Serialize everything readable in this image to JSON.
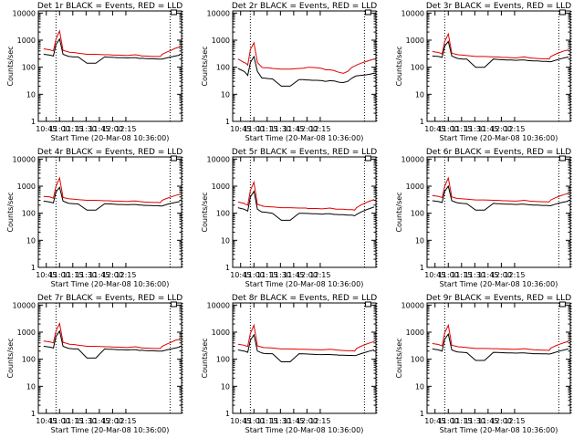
{
  "ylabel": "Counts/sec",
  "xlabel": "Start Time (20-Mar-08 10:36:00)",
  "xticks": [
    "10:45",
    "11:00",
    "11:15",
    "11:30",
    "11:45",
    "12:00",
    "12:15"
  ],
  "yticks": [
    "1",
    "10",
    "100",
    "1000",
    "10000"
  ],
  "series_names": [
    "Events",
    "LLD"
  ],
  "colors": {
    "events": "#000000",
    "lld": "#e00000",
    "axis": "#000000"
  },
  "chart_data": [
    {
      "type": "line",
      "title": "Det 1r BLACK = Events, RED = LLD",
      "x_minutes": [
        6,
        13,
        15,
        17,
        20,
        24,
        28,
        33,
        35,
        40,
        45,
        55,
        65,
        75,
        80,
        83,
        85,
        90,
        95,
        101,
        105,
        110,
        115,
        117,
        120,
        125,
        130,
        135,
        138,
        140,
        145,
        150,
        155,
        160
      ],
      "series": [
        {
          "name": "Events",
          "values": [
            300,
            280,
            270,
            260,
            700,
            1100,
            300,
            260,
            250,
            240,
            240,
            140,
            140,
            240,
            235,
            235,
            230,
            225,
            225,
            220,
            225,
            225,
            210,
            215,
            210,
            205,
            205,
            200,
            200,
            200,
            220,
            240,
            260,
            280
          ]
        },
        {
          "name": "LLD",
          "values": [
            480,
            440,
            420,
            400,
            1100,
            2200,
            420,
            380,
            360,
            350,
            330,
            300,
            300,
            290,
            290,
            285,
            280,
            280,
            275,
            270,
            280,
            290,
            270,
            260,
            260,
            255,
            250,
            250,
            250,
            300,
            360,
            420,
            500,
            560
          ]
        }
      ],
      "markers_minutes": [
        20,
        149,
        163
      ],
      "ylim": [
        1,
        12000
      ]
    },
    {
      "type": "line",
      "title": "Det 2r BLACK = Events, RED = LLD",
      "x_minutes": [
        6,
        13,
        15,
        17,
        20,
        24,
        28,
        33,
        35,
        40,
        45,
        55,
        65,
        75,
        80,
        83,
        85,
        90,
        95,
        101,
        105,
        110,
        115,
        117,
        120,
        125,
        130,
        135,
        138,
        140,
        145,
        150,
        155,
        160
      ],
      "series": [
        {
          "name": "Events",
          "values": [
            90,
            70,
            60,
            50,
            150,
            250,
            70,
            40,
            40,
            38,
            37,
            20,
            20,
            35,
            35,
            34,
            34,
            33,
            33,
            32,
            30,
            32,
            31,
            30,
            28,
            27,
            30,
            40,
            45,
            48,
            50,
            52,
            55,
            60
          ]
        },
        {
          "name": "LLD",
          "values": [
            200,
            150,
            140,
            120,
            450,
            800,
            150,
            100,
            95,
            95,
            90,
            85,
            85,
            90,
            92,
            95,
            100,
            98,
            95,
            90,
            80,
            80,
            75,
            70,
            65,
            60,
            70,
            100,
            110,
            120,
            140,
            160,
            180,
            200
          ]
        }
      ],
      "markers_minutes": [
        20,
        149,
        163
      ],
      "ylim": [
        1,
        12000
      ]
    },
    {
      "type": "line",
      "title": "Det 3r BLACK = Events, RED = LLD",
      "x_minutes": [
        6,
        13,
        15,
        17,
        20,
        24,
        28,
        33,
        35,
        40,
        45,
        55,
        65,
        75,
        80,
        83,
        85,
        90,
        95,
        101,
        105,
        110,
        115,
        117,
        120,
        125,
        130,
        135,
        138,
        140,
        145,
        150,
        155,
        160
      ],
      "series": [
        {
          "name": "Events",
          "values": [
            260,
            250,
            240,
            230,
            600,
            900,
            260,
            220,
            210,
            200,
            200,
            100,
            100,
            200,
            195,
            190,
            190,
            185,
            185,
            180,
            185,
            185,
            175,
            175,
            170,
            170,
            165,
            165,
            160,
            160,
            180,
            200,
            220,
            240
          ]
        },
        {
          "name": "LLD",
          "values": [
            380,
            350,
            330,
            310,
            900,
            1700,
            330,
            300,
            290,
            280,
            270,
            250,
            250,
            240,
            240,
            235,
            230,
            230,
            225,
            220,
            230,
            240,
            225,
            220,
            215,
            210,
            205,
            205,
            200,
            250,
            300,
            350,
            400,
            440
          ]
        }
      ],
      "markers_minutes": [
        20,
        149,
        163
      ],
      "ylim": [
        1,
        12000
      ]
    },
    {
      "type": "line",
      "title": "Det 4r BLACK = Events, RED = LLD",
      "x_minutes": [
        6,
        13,
        15,
        17,
        20,
        24,
        28,
        33,
        35,
        40,
        45,
        55,
        65,
        75,
        80,
        83,
        85,
        90,
        95,
        101,
        105,
        110,
        115,
        117,
        120,
        125,
        130,
        135,
        138,
        140,
        145,
        150,
        155,
        160
      ],
      "series": [
        {
          "name": "Events",
          "values": [
            280,
            260,
            250,
            240,
            620,
            900,
            280,
            240,
            230,
            225,
            220,
            130,
            130,
            225,
            220,
            220,
            215,
            210,
            210,
            205,
            210,
            210,
            200,
            200,
            195,
            195,
            190,
            190,
            185,
            185,
            210,
            230,
            250,
            270
          ]
        },
        {
          "name": "LLD",
          "values": [
            420,
            400,
            380,
            360,
            1000,
            2000,
            380,
            350,
            340,
            330,
            320,
            300,
            300,
            290,
            290,
            285,
            280,
            280,
            275,
            270,
            280,
            285,
            270,
            265,
            260,
            255,
            250,
            250,
            245,
            300,
            350,
            400,
            450,
            500
          ]
        }
      ],
      "markers_minutes": [
        20,
        149,
        163
      ],
      "ylim": [
        1,
        12000
      ]
    },
    {
      "type": "line",
      "title": "Det 5r BLACK = Events, RED = LLD",
      "x_minutes": [
        6,
        13,
        15,
        17,
        20,
        24,
        28,
        33,
        35,
        40,
        45,
        55,
        65,
        75,
        80,
        83,
        85,
        90,
        95,
        101,
        105,
        110,
        115,
        117,
        120,
        125,
        130,
        135,
        138,
        140,
        145,
        150,
        155,
        160
      ],
      "series": [
        {
          "name": "Events",
          "values": [
            160,
            140,
            130,
            120,
            400,
            650,
            140,
            110,
            110,
            105,
            100,
            55,
            55,
            100,
            100,
            98,
            98,
            95,
            95,
            92,
            95,
            95,
            90,
            90,
            88,
            88,
            85,
            85,
            80,
            90,
            110,
            130,
            150,
            170
          ]
        },
        {
          "name": "LLD",
          "values": [
            260,
            230,
            210,
            200,
            700,
            1400,
            210,
            190,
            180,
            175,
            170,
            160,
            160,
            155,
            155,
            155,
            150,
            150,
            150,
            145,
            150,
            155,
            145,
            140,
            140,
            140,
            135,
            135,
            130,
            160,
            200,
            240,
            280,
            320
          ]
        }
      ],
      "markers_minutes": [
        20,
        149,
        163
      ],
      "ylim": [
        1,
        12000
      ]
    },
    {
      "type": "line",
      "title": "Det 6r BLACK = Events, RED = LLD",
      "x_minutes": [
        6,
        13,
        15,
        17,
        20,
        24,
        28,
        33,
        35,
        40,
        45,
        55,
        65,
        75,
        80,
        83,
        85,
        90,
        95,
        101,
        105,
        110,
        115,
        117,
        120,
        125,
        130,
        135,
        138,
        140,
        145,
        150,
        155,
        160
      ],
      "series": [
        {
          "name": "Events",
          "values": [
            290,
            270,
            260,
            250,
            650,
            1000,
            290,
            250,
            240,
            230,
            225,
            130,
            130,
            230,
            225,
            225,
            220,
            215,
            215,
            210,
            215,
            215,
            205,
            205,
            200,
            200,
            195,
            195,
            190,
            190,
            215,
            240,
            260,
            280
          ]
        },
        {
          "name": "LLD",
          "values": [
            450,
            420,
            400,
            380,
            1000,
            2000,
            400,
            360,
            350,
            340,
            330,
            310,
            310,
            300,
            300,
            295,
            290,
            290,
            285,
            280,
            290,
            300,
            285,
            280,
            275,
            270,
            265,
            265,
            260,
            310,
            370,
            430,
            490,
            540
          ]
        }
      ],
      "markers_minutes": [
        20,
        149,
        163
      ],
      "ylim": [
        1,
        12000
      ]
    },
    {
      "type": "line",
      "title": "Det 7r BLACK = Events, RED = LLD",
      "x_minutes": [
        6,
        13,
        15,
        17,
        20,
        24,
        28,
        33,
        35,
        40,
        45,
        55,
        65,
        75,
        80,
        83,
        85,
        90,
        95,
        101,
        105,
        110,
        115,
        117,
        120,
        125,
        130,
        135,
        138,
        140,
        145,
        150,
        155,
        160
      ],
      "series": [
        {
          "name": "Events",
          "values": [
            300,
            280,
            270,
            260,
            700,
            1100,
            300,
            260,
            250,
            240,
            240,
            110,
            110,
            240,
            235,
            235,
            230,
            225,
            225,
            220,
            225,
            225,
            210,
            215,
            210,
            205,
            205,
            200,
            200,
            200,
            220,
            240,
            260,
            280
          ]
        },
        {
          "name": "LLD",
          "values": [
            470,
            440,
            420,
            400,
            1100,
            2100,
            420,
            380,
            360,
            350,
            330,
            300,
            300,
            290,
            290,
            285,
            280,
            280,
            275,
            270,
            280,
            290,
            270,
            260,
            260,
            255,
            250,
            250,
            250,
            300,
            360,
            420,
            500,
            550
          ]
        }
      ],
      "markers_minutes": [
        20,
        149,
        163
      ],
      "ylim": [
        1,
        12000
      ]
    },
    {
      "type": "line",
      "title": "Det 8r BLACK = Events, RED = LLD",
      "x_minutes": [
        6,
        13,
        15,
        17,
        20,
        24,
        28,
        33,
        35,
        40,
        45,
        55,
        65,
        75,
        80,
        83,
        85,
        90,
        95,
        101,
        105,
        110,
        115,
        117,
        120,
        125,
        130,
        135,
        138,
        140,
        145,
        150,
        155,
        160
      ],
      "series": [
        {
          "name": "Events",
          "values": [
            220,
            200,
            190,
            180,
            500,
            800,
            200,
            170,
            165,
            160,
            160,
            80,
            80,
            160,
            158,
            156,
            155,
            152,
            150,
            148,
            150,
            150,
            145,
            145,
            140,
            140,
            138,
            138,
            135,
            140,
            160,
            180,
            200,
            220
          ]
        },
        {
          "name": "LLD",
          "values": [
            360,
            330,
            310,
            300,
            900,
            1800,
            310,
            280,
            270,
            265,
            260,
            240,
            240,
            235,
            235,
            230,
            230,
            228,
            225,
            222,
            228,
            235,
            225,
            220,
            215,
            210,
            205,
            205,
            200,
            250,
            300,
            350,
            400,
            450
          ]
        }
      ],
      "markers_minutes": [
        20,
        149,
        163
      ],
      "ylim": [
        1,
        12000
      ]
    },
    {
      "type": "line",
      "title": "Det 9r BLACK = Events, RED = LLD",
      "x_minutes": [
        6,
        13,
        15,
        17,
        20,
        24,
        28,
        33,
        35,
        40,
        45,
        55,
        65,
        75,
        80,
        83,
        85,
        90,
        95,
        101,
        105,
        110,
        115,
        117,
        120,
        125,
        130,
        135,
        138,
        140,
        145,
        150,
        155,
        160
      ],
      "series": [
        {
          "name": "Events",
          "values": [
            240,
            220,
            210,
            200,
            550,
            850,
            220,
            190,
            185,
            180,
            175,
            90,
            90,
            180,
            178,
            176,
            175,
            172,
            170,
            168,
            170,
            170,
            165,
            165,
            160,
            160,
            158,
            158,
            155,
            160,
            180,
            200,
            220,
            240
          ]
        },
        {
          "name": "LLD",
          "values": [
            380,
            350,
            330,
            310,
            950,
            1800,
            330,
            300,
            290,
            280,
            270,
            250,
            250,
            245,
            245,
            240,
            240,
            238,
            235,
            232,
            238,
            245,
            235,
            230,
            225,
            220,
            215,
            215,
            210,
            260,
            310,
            360,
            410,
            460
          ]
        }
      ],
      "markers_minutes": [
        20,
        149,
        163
      ],
      "ylim": [
        1,
        12000
      ]
    }
  ]
}
